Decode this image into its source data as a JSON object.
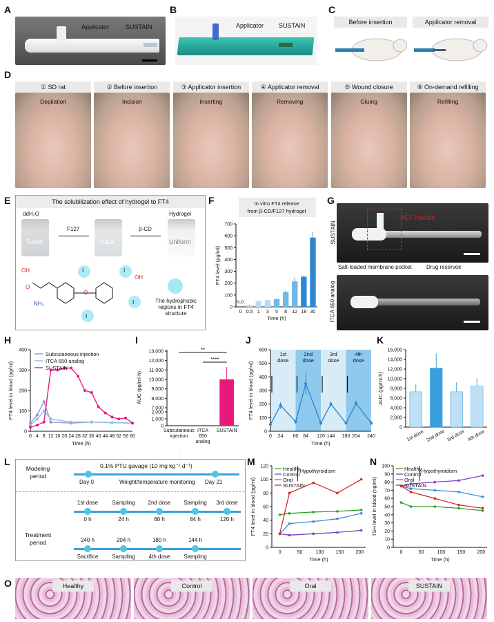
{
  "panel_letters": [
    "A",
    "B",
    "C",
    "D",
    "E",
    "F",
    "G",
    "H",
    "I",
    "J",
    "K",
    "L",
    "M",
    "N",
    "O"
  ],
  "panelA": {
    "applicator": "Applicator",
    "sustain": "SUSTAIN"
  },
  "panelB": {
    "applicator": "Applicator",
    "sustain": "SUSTAIN"
  },
  "panelC": {
    "left": "Before insertion",
    "right": "Applicator removal"
  },
  "panelD": {
    "steps": [
      {
        "title": "① SD rat",
        "action": "Depilation"
      },
      {
        "title": "② Before insertion",
        "action": "Incision"
      },
      {
        "title": "③ Applicator insertion",
        "action": "Inserting"
      },
      {
        "title": "④ Applicator removal",
        "action": "Removing"
      },
      {
        "title": "⑤ Wound closure",
        "action": "Gluing"
      },
      {
        "title": "⑥ On-demand refilling",
        "action": "Refilling"
      }
    ]
  },
  "panelE": {
    "title": "The solubilization effect of hydrogel to FT4",
    "vial1_label": "ddH₂O",
    "vial1_state": "Turbid",
    "arrow1": "F127",
    "vial2_state": "Clear",
    "arrow2": "β-CD",
    "vial3_label": "Hydrogel",
    "vial3_state": "Uniform",
    "legend": "The hydrophobic regions in FT4 structure",
    "atoms": {
      "oh": "OH",
      "o_acid": "O",
      "nh2": "NH₂",
      "o_ether": "O",
      "oh2": "OH",
      "i": "I"
    }
  },
  "panelG": {
    "top_side": "SUSTAIN",
    "module": "AGT module",
    "pocket": "Salt-loaded membrane pocket",
    "reservoir": "Drug reservoir",
    "bottom_side": "ITCA 650 analog"
  },
  "panelL": {
    "modeling_period": "Modeling period",
    "treatment_period": "Treatment period",
    "gavage": "0.1% PTU gavage (10 mg kg⁻¹ d⁻¹)",
    "day0": "Day 0",
    "day21": "Day 21",
    "monitor": "Weight/temperature monitoring",
    "row1_top": [
      "1st dose",
      "Sampling",
      "2nd dose",
      "Sampling",
      "3rd dose"
    ],
    "row1_bottom": [
      "0 h",
      "24 h",
      "60 h",
      "84 h",
      "120 h"
    ],
    "row2_top": [
      "240 h",
      "204 h",
      "180 h",
      "144 h"
    ],
    "row2_bottom": [
      "Sacrifice",
      "Sampling",
      "4th dose",
      "Sampling"
    ]
  },
  "panelO": {
    "groups": [
      "Healthy",
      "Control",
      "Oral",
      "SUSTAIN"
    ]
  },
  "colors": {
    "sustain": "#e8197d",
    "itca": "#8fb8e8",
    "subq": "#9b8fd6",
    "bar_blue": "#3aa0dc",
    "healthy": "#2ca02c",
    "control": "#7b3fc7",
    "oral": "#3a8fd8",
    "sustain_red": "#d62728"
  },
  "chart_data": [
    {
      "panel": "F",
      "type": "bar",
      "title": "In vitro FT4 release from β-CD/F127 hydrogel",
      "xlabel": "Time (h)",
      "ylabel": "FT4 level (pg/ml)",
      "categories": [
        "0",
        "0.5",
        "1",
        "3",
        "5",
        "8",
        "12",
        "18",
        "30"
      ],
      "values": [
        0,
        15,
        48,
        55,
        65,
        125,
        215,
        255,
        585
      ],
      "errors": [
        0,
        3,
        5,
        5,
        6,
        12,
        35,
        10,
        50
      ],
      "annotation": "N.D.",
      "yticks": [
        0,
        100,
        200,
        300,
        400,
        500,
        600,
        700
      ],
      "ylim": [
        0,
        700
      ]
    },
    {
      "panel": "H",
      "type": "line",
      "xlabel": "Time (h)",
      "ylabel": "FT4 level in blood (pg/ml)",
      "xticks": [
        0,
        4,
        8,
        12,
        16,
        20,
        24,
        28,
        32,
        36,
        40,
        44,
        48,
        52,
        56,
        60
      ],
      "yticks": [
        0,
        100,
        200,
        300,
        400
      ],
      "ylim": [
        0,
        400
      ],
      "xlim": [
        0,
        60
      ],
      "series": [
        {
          "name": "Subcutaneous injection",
          "x": [
            0,
            4,
            8,
            12,
            24,
            36,
            48,
            60
          ],
          "y": [
            40,
            80,
            145,
            45,
            40,
            45,
            42,
            40
          ]
        },
        {
          "name": "ITCA 650 analog",
          "x": [
            0,
            4,
            8,
            12,
            24,
            36,
            48,
            60
          ],
          "y": [
            30,
            60,
            100,
            60,
            45,
            45,
            42,
            40
          ]
        },
        {
          "name": "SUSTAIN",
          "x": [
            0,
            4,
            8,
            12,
            16,
            20,
            24,
            28,
            32,
            36,
            40,
            44,
            48,
            52,
            56,
            60
          ],
          "y": [
            20,
            30,
            45,
            300,
            300,
            310,
            310,
            270,
            200,
            190,
            120,
            90,
            70,
            60,
            65,
            40
          ]
        }
      ]
    },
    {
      "panel": "I",
      "type": "bar",
      "ylabel": "AUC (pg/ml·h)",
      "categories": [
        "Subcutaneous injection",
        "ITCA 650 analog",
        "SUSTAIN"
      ],
      "values": [
        2200,
        0,
        10000
      ],
      "errors": [
        100,
        0,
        1300
      ],
      "yticks": [
        "0",
        "1,000",
        "2,000",
        "7,000",
        "8,000",
        "9,000",
        "10,000",
        "11,000",
        "12,000",
        "13,000"
      ],
      "significance": [
        "**",
        "****"
      ]
    },
    {
      "panel": "J",
      "type": "line",
      "xlabel": "Time (h)",
      "ylabel": "FT4 level in blood (pg/ml)",
      "xticks": [
        0,
        24,
        60,
        84,
        120,
        144,
        180,
        204,
        240
      ],
      "yticks": [
        0,
        100,
        200,
        300,
        400,
        500,
        600
      ],
      "ylim": [
        0,
        600
      ],
      "dose_labels": [
        "1st dose",
        "2nd dose",
        "3rd dose",
        "4th dose"
      ],
      "x": [
        0,
        24,
        60,
        84,
        120,
        144,
        180,
        204,
        240
      ],
      "y": [
        50,
        190,
        70,
        350,
        60,
        200,
        60,
        205,
        60
      ],
      "errors": [
        10,
        25,
        15,
        80,
        15,
        20,
        10,
        20,
        15
      ]
    },
    {
      "panel": "K",
      "type": "bar",
      "ylabel": "AUC (pg/ml·h)",
      "categories": [
        "1st dose",
        "2nd dose",
        "3rd dose",
        "4th dose"
      ],
      "values": [
        7300,
        12200,
        7300,
        8500
      ],
      "errors": [
        1500,
        3000,
        2000,
        1600
      ],
      "yticks": [
        "0",
        "2,000",
        "4,000",
        "6,000",
        "8,000",
        "10,000",
        "12,000",
        "14,000",
        "16,000"
      ],
      "ylim": [
        0,
        16000
      ]
    },
    {
      "panel": "M",
      "type": "line",
      "xlabel": "Time (h)",
      "ylabel": "FT4 level in blood (pg/ml)",
      "annotation": "Hypothyroidism",
      "xticks": [
        0,
        50,
        100,
        150,
        200
      ],
      "yticks": [
        0,
        20,
        40,
        60,
        80,
        100,
        120
      ],
      "ylim": [
        0,
        120
      ],
      "xlim": [
        -20,
        215
      ],
      "series": [
        {
          "name": "Healthy",
          "x": [
            0,
            24,
            84,
            144,
            204
          ],
          "y": [
            48,
            50,
            52,
            53,
            55
          ]
        },
        {
          "name": "Control",
          "x": [
            0,
            24,
            84,
            144,
            204
          ],
          "y": [
            20,
            18,
            20,
            22,
            25
          ]
        },
        {
          "name": "Oral",
          "x": [
            0,
            24,
            84,
            144,
            204
          ],
          "y": [
            20,
            35,
            38,
            42,
            50
          ]
        },
        {
          "name": "SUSTAIN",
          "x": [
            0,
            24,
            84,
            144,
            204
          ],
          "y": [
            20,
            80,
            95,
            80,
            100
          ]
        }
      ]
    },
    {
      "panel": "N",
      "type": "line",
      "xlabel": "Time (h)",
      "ylabel": "TSH level in blood (ng/ml)",
      "annotation": "Hypothyroidism",
      "xticks": [
        0,
        50,
        100,
        150,
        200
      ],
      "yticks": [
        0,
        10,
        20,
        30,
        40,
        50,
        60,
        70,
        80,
        90,
        100
      ],
      "ylim": [
        0,
        100
      ],
      "xlim": [
        -20,
        215
      ],
      "series": [
        {
          "name": "Healthy",
          "x": [
            0,
            24,
            84,
            144,
            204
          ],
          "y": [
            55,
            50,
            50,
            48,
            45
          ]
        },
        {
          "name": "Control",
          "x": [
            0,
            24,
            84,
            144,
            204
          ],
          "y": [
            75,
            78,
            80,
            82,
            88
          ]
        },
        {
          "name": "Oral",
          "x": [
            0,
            24,
            84,
            144,
            204
          ],
          "y": [
            75,
            72,
            70,
            68,
            62
          ]
        },
        {
          "name": "SUSTAIN",
          "x": [
            0,
            24,
            84,
            144,
            204
          ],
          "y": [
            75,
            68,
            60,
            52,
            48
          ]
        }
      ]
    }
  ]
}
